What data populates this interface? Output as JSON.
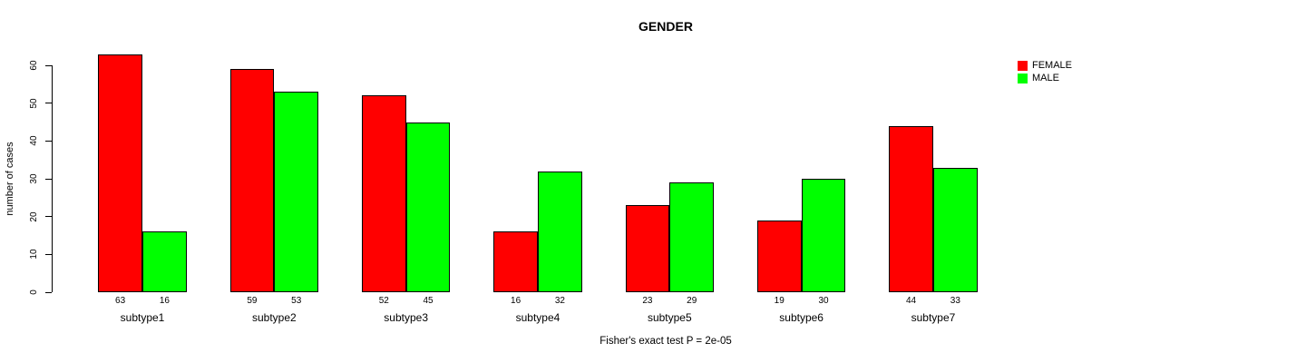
{
  "title": "GENDER",
  "caption": "Fisher's exact test P = 2e-05",
  "y_axis_title": "number of cases",
  "legend": {
    "items": [
      {
        "label": "FEMALE",
        "color": "#ff0000"
      },
      {
        "label": "MALE",
        "color": "#00ff00"
      }
    ]
  },
  "chart_data": {
    "type": "bar",
    "title": "GENDER",
    "xlabel": "",
    "ylabel": "number of cases",
    "ylim": [
      0,
      60
    ],
    "yticks": [
      0,
      10,
      20,
      30,
      40,
      50,
      60
    ],
    "grid": false,
    "legend_position": "top-right",
    "categories": [
      "subtype1",
      "subtype2",
      "subtype3",
      "subtype4",
      "subtype5",
      "subtype6",
      "subtype7"
    ],
    "series": [
      {
        "name": "FEMALE",
        "color": "#ff0000",
        "values": [
          63,
          59,
          52,
          16,
          23,
          19,
          44
        ]
      },
      {
        "name": "MALE",
        "color": "#00ff00",
        "values": [
          16,
          53,
          45,
          32,
          29,
          30,
          33
        ]
      }
    ],
    "bar_value_labels": true,
    "annotation": "Fisher's exact test P = 2e-05"
  }
}
